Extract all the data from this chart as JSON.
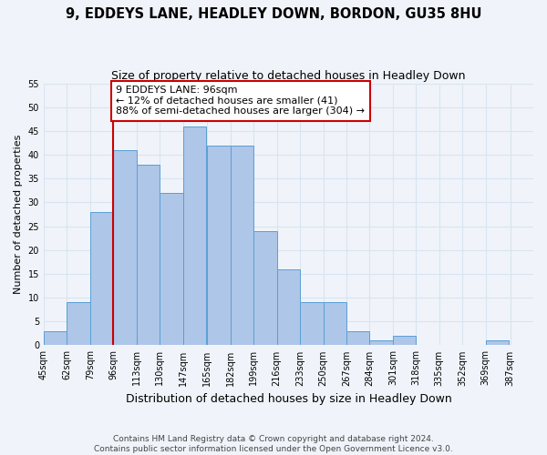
{
  "title1": "9, EDDEYS LANE, HEADLEY DOWN, BORDON, GU35 8HU",
  "title2": "Size of property relative to detached houses in Headley Down",
  "xlabel": "Distribution of detached houses by size in Headley Down",
  "ylabel": "Number of detached properties",
  "footnote1": "Contains HM Land Registry data © Crown copyright and database right 2024.",
  "footnote2": "Contains public sector information licensed under the Open Government Licence v3.0.",
  "bin_labels": [
    "45sqm",
    "62sqm",
    "79sqm",
    "96sqm",
    "113sqm",
    "130sqm",
    "147sqm",
    "165sqm",
    "182sqm",
    "199sqm",
    "216sqm",
    "233sqm",
    "250sqm",
    "267sqm",
    "284sqm",
    "301sqm",
    "318sqm",
    "335sqm",
    "352sqm",
    "369sqm",
    "387sqm"
  ],
  "bin_edges": [
    45,
    62,
    79,
    96,
    113,
    130,
    147,
    165,
    182,
    199,
    216,
    233,
    250,
    267,
    284,
    301,
    318,
    335,
    352,
    369,
    387
  ],
  "bar_heights": [
    3,
    9,
    28,
    41,
    38,
    32,
    46,
    42,
    42,
    24,
    16,
    9,
    9,
    3,
    1,
    2,
    0,
    0,
    0,
    1,
    0
  ],
  "bar_color": "#aec6e8",
  "bar_edge_color": "#5a9fd4",
  "vline_x": 96,
  "vline_color": "#cc0000",
  "annotation_text": "9 EDDEYS LANE: 96sqm\n← 12% of detached houses are smaller (41)\n88% of semi-detached houses are larger (304) →",
  "annotation_box_color": "#ffffff",
  "annotation_box_edge": "#cc0000",
  "ylim": [
    0,
    55
  ],
  "yticks": [
    0,
    5,
    10,
    15,
    20,
    25,
    30,
    35,
    40,
    45,
    50,
    55
  ],
  "background_color": "#f0f4fa",
  "grid_color": "#d8e4f0",
  "title1_fontsize": 10.5,
  "title2_fontsize": 9,
  "xlabel_fontsize": 9,
  "ylabel_fontsize": 8,
  "tick_fontsize": 7,
  "annotation_fontsize": 8,
  "footnote_fontsize": 6.5
}
